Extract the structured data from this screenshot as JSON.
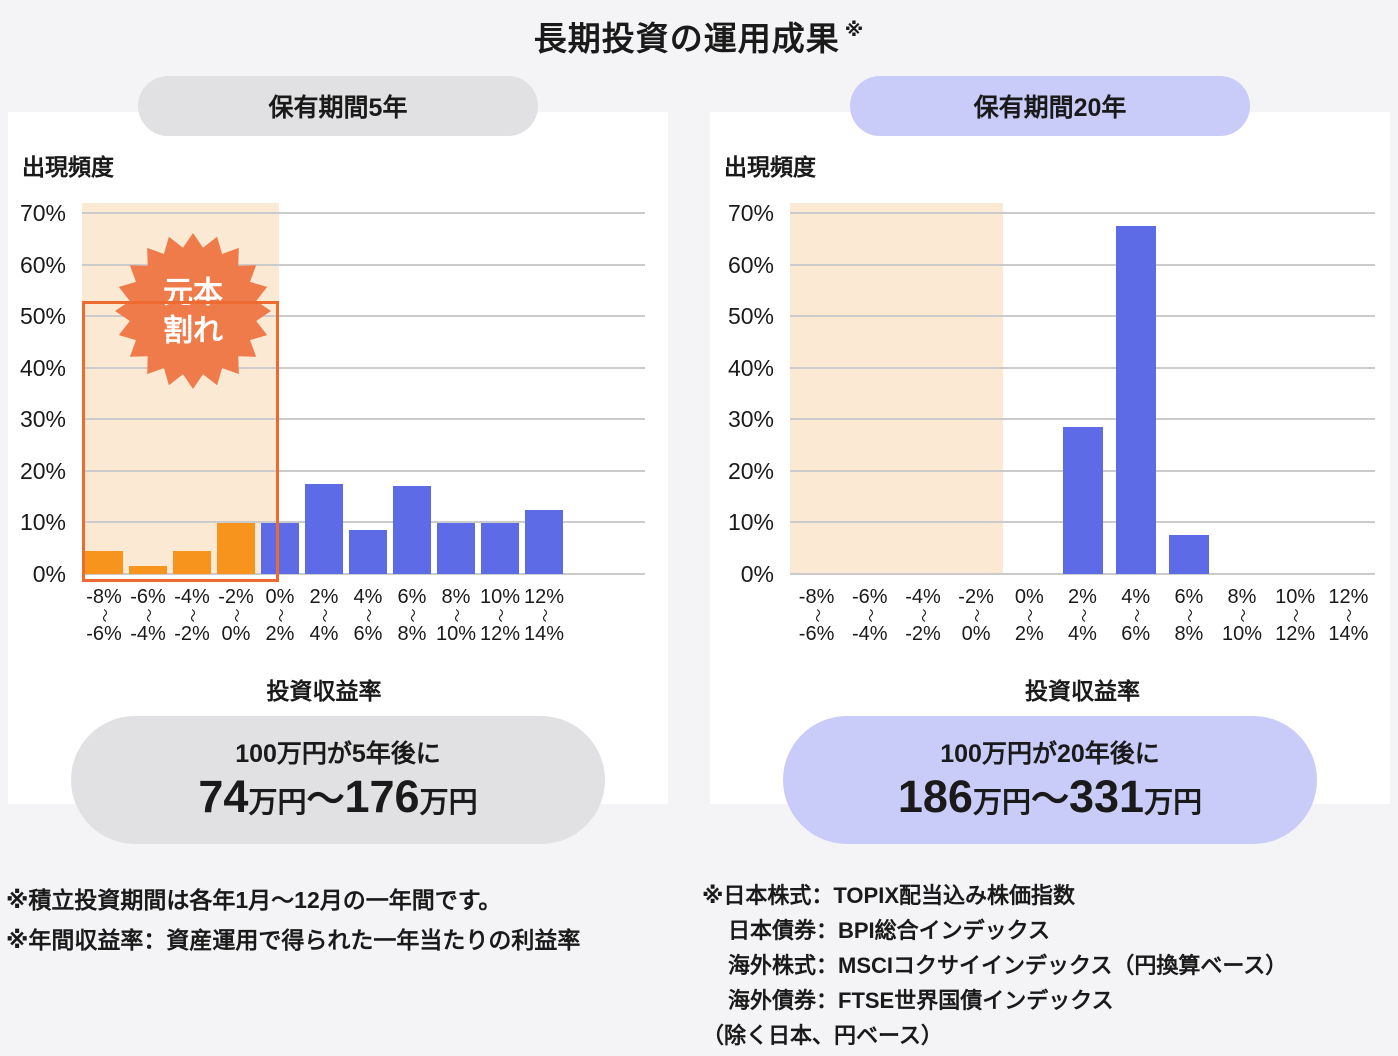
{
  "title": {
    "text": "長期投資の運用成果",
    "note_mark": "※"
  },
  "colors": {
    "background": "#f4f4f6",
    "panel": "#ffffff",
    "loss_bar": "#f7941d",
    "gain_bar": "#5d6ce6",
    "loss_shade": "#fbe9d4",
    "loss_box_border": "#ed6a30",
    "badge": "#ef7a4a",
    "pill_gray": "#e1e1e3",
    "pill_lavender": "#c9ccf8",
    "gridline": "#cbcbcb",
    "text": "#1a1a1a"
  },
  "chart_data": [
    {
      "type": "bar",
      "title": "保有期間5年",
      "period_label": "保有期間5年",
      "ylabel": "出現頻度",
      "xlabel": "投資収益率",
      "ylim": [
        0,
        72
      ],
      "grid": true,
      "legend": "none",
      "range_mark": "〜",
      "yticks": [
        {
          "label": "70%",
          "value": 70
        },
        {
          "label": "60%",
          "value": 60
        },
        {
          "label": "50%",
          "value": 50
        },
        {
          "label": "40%",
          "value": 40
        },
        {
          "label": "30%",
          "value": 30
        },
        {
          "label": "20%",
          "value": 20
        },
        {
          "label": "10%",
          "value": 10
        },
        {
          "label": "0%",
          "value": 0
        }
      ],
      "categories": [
        {
          "from": "-8%",
          "to": "-6%"
        },
        {
          "from": "-6%",
          "to": "-4%"
        },
        {
          "from": "-4%",
          "to": "-2%"
        },
        {
          "from": "-2%",
          "to": "0%"
        },
        {
          "from": "0%",
          "to": "2%"
        },
        {
          "from": "2%",
          "to": "4%"
        },
        {
          "from": "4%",
          "to": "6%"
        },
        {
          "from": "6%",
          "to": "8%"
        },
        {
          "from": "8%",
          "to": "10%"
        },
        {
          "from": "10%",
          "to": "12%"
        },
        {
          "from": "12%",
          "to": "14%"
        }
      ],
      "values": [
        4.5,
        1.5,
        4.5,
        10,
        10,
        17.5,
        8.5,
        17,
        10,
        10,
        12.5
      ],
      "loss_zone": {
        "bins": 4,
        "fill": "#fbe9d4",
        "box_top_percent": 53,
        "badge_lines": [
          "元本",
          "割れ"
        ]
      },
      "result": {
        "caption": "100万円が5年後に",
        "from": "74",
        "tilde": "〜",
        "to": "176",
        "unit": "万円"
      }
    },
    {
      "type": "bar",
      "title": "保有期間20年",
      "period_label": "保有期間20年",
      "ylabel": "出現頻度",
      "xlabel": "投資収益率",
      "ylim": [
        0,
        72
      ],
      "grid": true,
      "legend": "none",
      "range_mark": "〜",
      "yticks": [
        {
          "label": "70%",
          "value": 70
        },
        {
          "label": "60%",
          "value": 60
        },
        {
          "label": "50%",
          "value": 50
        },
        {
          "label": "40%",
          "value": 40
        },
        {
          "label": "30%",
          "value": 30
        },
        {
          "label": "20%",
          "value": 20
        },
        {
          "label": "10%",
          "value": 10
        },
        {
          "label": "0%",
          "value": 0
        }
      ],
      "categories": [
        {
          "from": "-8%",
          "to": "-6%"
        },
        {
          "from": "-6%",
          "to": "-4%"
        },
        {
          "from": "-4%",
          "to": "-2%"
        },
        {
          "from": "-2%",
          "to": "0%"
        },
        {
          "from": "0%",
          "to": "2%"
        },
        {
          "from": "2%",
          "to": "4%"
        },
        {
          "from": "4%",
          "to": "6%"
        },
        {
          "from": "6%",
          "to": "8%"
        },
        {
          "from": "8%",
          "to": "10%"
        },
        {
          "from": "10%",
          "to": "12%"
        },
        {
          "from": "12%",
          "to": "14%"
        }
      ],
      "values": [
        0,
        0,
        0,
        0,
        0,
        28.5,
        67.5,
        7.5,
        0,
        0,
        0
      ],
      "loss_zone": {
        "bins": 4,
        "fill": "#fbe9d4"
      },
      "result": {
        "caption": "100万円が20年後に",
        "from": "186",
        "tilde": "〜",
        "to": "331",
        "unit": "万円"
      }
    }
  ],
  "footnotes_left": {
    "lines": [
      {
        "text": "※積立投資期間は各年1月〜12月の一年間です。",
        "indent": false
      },
      {
        "text": "※年間収益率：資産運用で得られた一年当たりの利益率",
        "indent": false
      }
    ]
  },
  "footnotes_right": {
    "lines": [
      {
        "text": "※日本株式：TOPIX配当込み株価指数",
        "indent": false
      },
      {
        "text": "日本債券：BPI総合インデックス",
        "indent": true
      },
      {
        "text": "海外株式：MSCIコクサイインデックス（円換算ベース）",
        "indent": true
      },
      {
        "text": "海外債券：FTSE世界国債インデックス",
        "indent": true
      },
      {
        "text": "（除く日本、円ベース）",
        "indent": false
      }
    ]
  }
}
